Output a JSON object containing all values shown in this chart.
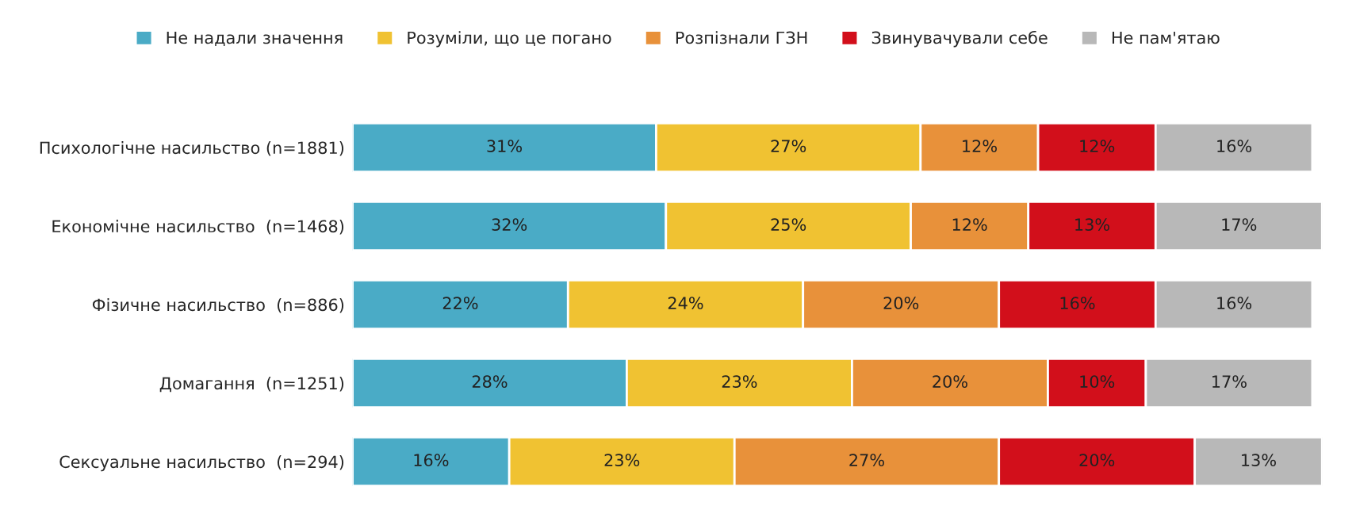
{
  "chart_data": {
    "type": "bar",
    "orientation": "horizontal",
    "stacked": true,
    "legend": "top",
    "tick_labels": "y",
    "grid": false,
    "categories": [
      "Психологічне насильство (n=1881)",
      "Економічне насильство  (n=1468)",
      "Фізичне насильство  (n=886)",
      "Домагання  (n=1251)",
      "Сексуальне насильство  (n=294)"
    ],
    "series": [
      {
        "name": "Не надали значення",
        "color": "#4aabc6",
        "values": [
          31,
          32,
          22,
          28,
          16
        ],
        "value_labels": [
          "31%",
          "32%",
          "22%",
          "28%",
          "16%"
        ]
      },
      {
        "name": "Розуміли, що це погано",
        "color": "#f0c232",
        "values": [
          27,
          25,
          24,
          23,
          23
        ],
        "value_labels": [
          "27%",
          "25%",
          "24%",
          "23%",
          "23%"
        ]
      },
      {
        "name": "Розпізнали ГЗН",
        "color": "#e8913a",
        "values": [
          12,
          12,
          20,
          20,
          27
        ],
        "value_labels": [
          "12%",
          "12%",
          "20%",
          "20%",
          "27%"
        ]
      },
      {
        "name": "Звинувачували себе",
        "color": "#d20f1b",
        "values": [
          12,
          13,
          16,
          10,
          20
        ],
        "value_labels": [
          "12%",
          "13%",
          "16%",
          "10%",
          "20%"
        ]
      },
      {
        "name": "Не пам'ятаю",
        "color": "#b8b8b8",
        "values": [
          16,
          17,
          16,
          17,
          13
        ],
        "value_labels": [
          "16%",
          "17%",
          "16%",
          "17%",
          "13%"
        ]
      }
    ]
  }
}
